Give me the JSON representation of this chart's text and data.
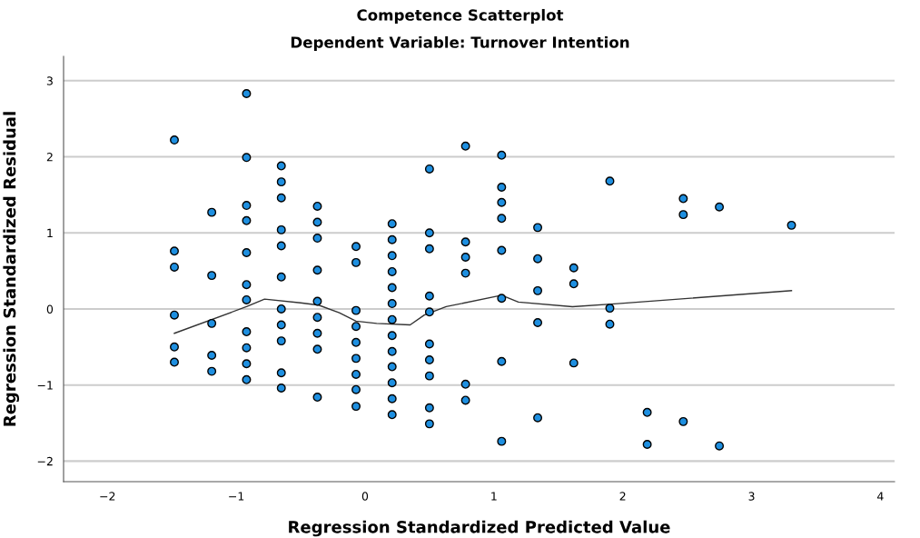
{
  "chart_data": {
    "type": "scatter",
    "title": "Competence Scatterplot",
    "subtitle": "Dependent Variable: Turnover Intention",
    "xlabel": "Regression Standardized Predicted Value",
    "ylabel": "Regression Standardized Residual",
    "xlim": [
      -2.34,
      4.11
    ],
    "ylim": [
      -2.27,
      3.32
    ],
    "xticks": [
      {
        "value": -2,
        "label": "−2"
      },
      {
        "value": -1,
        "label": "−1"
      },
      0,
      1,
      2,
      3,
      4
    ],
    "yticks": [
      {
        "value": -2,
        "label": "−2"
      },
      {
        "value": -1,
        "label": "−1"
      },
      0,
      1,
      2,
      3
    ],
    "grid": "y",
    "legend": false,
    "marker": "circle",
    "series": [
      {
        "color": "#1e8fe0",
        "x": [
          -1.48,
          -1.48,
          -1.48,
          -1.48,
          -1.48,
          -1.48,
          -1.19,
          -1.19,
          -1.19,
          -1.19,
          -1.19,
          -0.92,
          -0.92,
          -0.92,
          -0.92,
          -0.92,
          -0.92,
          -0.92,
          -0.92,
          -0.92,
          -0.92,
          -0.92,
          -0.65,
          -0.65,
          -0.65,
          -0.65,
          -0.65,
          -0.65,
          -0.65,
          -0.65,
          -0.65,
          -0.65,
          -0.65,
          -0.37,
          -0.37,
          -0.37,
          -0.37,
          -0.37,
          -0.37,
          -0.37,
          -0.37,
          -0.37,
          -0.07,
          -0.07,
          -0.07,
          -0.07,
          -0.07,
          -0.07,
          -0.07,
          -0.07,
          -0.07,
          0.21,
          0.21,
          0.21,
          0.21,
          0.21,
          0.21,
          0.21,
          0.21,
          0.21,
          0.21,
          0.21,
          0.21,
          0.21,
          0.5,
          0.5,
          0.5,
          0.5,
          0.5,
          0.5,
          0.5,
          0.5,
          0.5,
          0.5,
          0.78,
          0.78,
          0.78,
          0.78,
          0.78,
          0.78,
          1.06,
          1.06,
          1.06,
          1.06,
          1.06,
          1.06,
          1.06,
          1.06,
          1.34,
          1.34,
          1.34,
          1.34,
          1.34,
          1.62,
          1.62,
          1.62,
          1.9,
          1.9,
          1.9,
          2.19,
          2.19,
          2.47,
          2.47,
          2.47,
          2.75,
          2.75,
          3.31
        ],
        "values": [
          2.22,
          0.76,
          0.55,
          -0.08,
          -0.5,
          -0.7,
          1.27,
          0.44,
          -0.19,
          -0.61,
          -0.82,
          2.83,
          1.99,
          1.36,
          1.16,
          0.74,
          0.32,
          0.12,
          -0.3,
          -0.51,
          -0.72,
          -0.93,
          1.88,
          1.67,
          1.46,
          1.04,
          0.83,
          0.42,
          0.0,
          -0.21,
          -0.42,
          -0.84,
          -1.04,
          1.35,
          1.14,
          0.93,
          0.51,
          0.1,
          -0.11,
          -0.32,
          -0.53,
          -1.16,
          0.82,
          0.61,
          -0.02,
          -0.23,
          -0.44,
          -0.65,
          -0.86,
          -1.06,
          -1.28,
          1.12,
          0.91,
          0.7,
          0.49,
          0.28,
          0.07,
          -0.14,
          -0.35,
          -0.56,
          -0.76,
          -0.97,
          -1.18,
          -1.39,
          1.84,
          1.0,
          0.79,
          0.17,
          -0.04,
          -0.46,
          -0.67,
          -0.88,
          -1.3,
          -1.51,
          2.14,
          0.88,
          0.68,
          0.47,
          -0.99,
          -1.2,
          2.02,
          1.6,
          1.4,
          1.19,
          0.77,
          0.14,
          -0.69,
          -1.74,
          1.07,
          0.66,
          0.24,
          -0.18,
          -1.43,
          0.54,
          0.33,
          -0.71,
          1.68,
          0.01,
          -0.2,
          -1.36,
          -1.78,
          1.45,
          1.24,
          -1.48,
          1.34,
          -1.8,
          1.1
        ]
      },
      {
        "type": "line",
        "color": "#333333",
        "marker": "none",
        "x": [
          -1.48,
          -0.92,
          -0.78,
          -0.5,
          -0.36,
          -0.2,
          -0.07,
          0.09,
          0.35,
          0.46,
          0.63,
          1.06,
          1.19,
          1.61,
          1.96,
          3.31
        ],
        "values": [
          -0.32,
          0.03,
          0.13,
          0.08,
          0.05,
          -0.05,
          -0.16,
          -0.19,
          -0.21,
          -0.08,
          0.03,
          0.18,
          0.09,
          0.03,
          0.07,
          0.24
        ]
      }
    ]
  }
}
